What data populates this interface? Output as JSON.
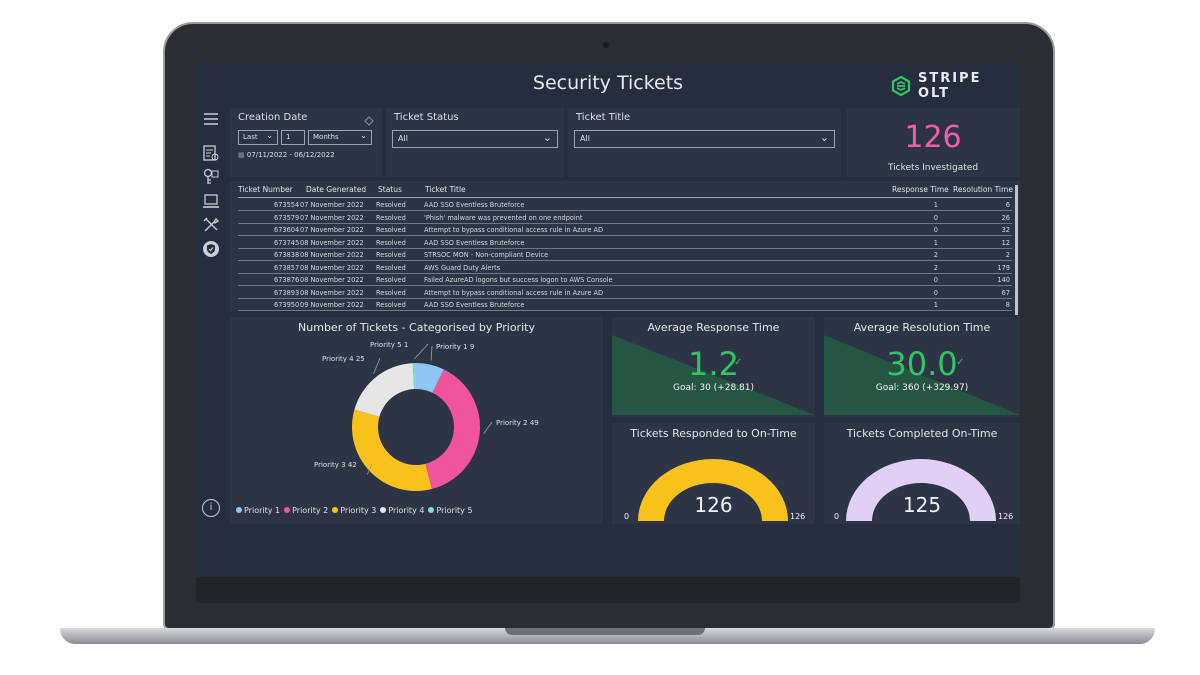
{
  "header": {
    "title": "Security Tickets",
    "brand": "STRIPE OLT"
  },
  "nav": {
    "icons": [
      "menu-icon",
      "report-icon",
      "key-icon",
      "laptop-icon",
      "tools-icon",
      "shield-icon"
    ],
    "info": "i"
  },
  "filters": {
    "creation_date": {
      "label": "Creation Date",
      "period": "Last",
      "count": "1",
      "unit": "Months",
      "range": "07/11/2022 - 06/12/2022"
    },
    "ticket_status": {
      "label": "Ticket Status",
      "value": "All"
    },
    "ticket_title": {
      "label": "Ticket Title",
      "value": "All"
    }
  },
  "kpi": {
    "value": "126",
    "caption": "Tickets Investigated"
  },
  "table": {
    "headers": {
      "number": "Ticket Number",
      "date": "Date Generated",
      "status": "Status",
      "title": "Ticket Title",
      "response": "Response Time",
      "resolution": "Resolution Time"
    },
    "rows": [
      {
        "number": "673554",
        "date": "07 November 2022",
        "status": "Resolved",
        "title": "AAD SSO Eventless Bruteforce",
        "response": "1",
        "resolution": "6"
      },
      {
        "number": "673579",
        "date": "07 November 2022",
        "status": "Resolved",
        "title": "'Phish' malware was prevented on one endpoint",
        "response": "0",
        "resolution": "26"
      },
      {
        "number": "673604",
        "date": "07 November 2022",
        "status": "Resolved",
        "title": "Attempt to bypass conditional access rule in Azure AD",
        "response": "0",
        "resolution": "32"
      },
      {
        "number": "673745",
        "date": "08 November 2022",
        "status": "Resolved",
        "title": "AAD SSO Eventless Bruteforce",
        "response": "1",
        "resolution": "12"
      },
      {
        "number": "673838",
        "date": "08 November 2022",
        "status": "Resolved",
        "title": "STRSOC MON - Non-compliant Device",
        "response": "2",
        "resolution": "2"
      },
      {
        "number": "673857",
        "date": "08 November 2022",
        "status": "Resolved",
        "title": "AWS Guard Duty Alerts",
        "response": "2",
        "resolution": "179"
      },
      {
        "number": "673876",
        "date": "08 November 2022",
        "status": "Resolved",
        "title": "Failed AzureAD logons but success logon to AWS Console",
        "response": "0",
        "resolution": "140"
      },
      {
        "number": "673893",
        "date": "08 November 2022",
        "status": "Resolved",
        "title": "Attempt to bypass conditional access rule in Azure AD",
        "response": "0",
        "resolution": "67"
      },
      {
        "number": "673950",
        "date": "09 November 2022",
        "status": "Resolved",
        "title": "AAD SSO Eventless Bruteforce",
        "response": "1",
        "resolution": "8"
      }
    ]
  },
  "donut": {
    "title": "Number of Tickets - Categorised by Priority",
    "labels": [
      "Priority 1 9",
      "Priority 2 49",
      "Priority 3 42",
      "Priority 4 25",
      "Priority 5 1"
    ],
    "legend": [
      "Priority 1",
      "Priority 2",
      "Priority 3",
      "Priority 4",
      "Priority 5"
    ]
  },
  "response_card": {
    "title": "Average Response Time",
    "value": "1.2",
    "goal": "Goal: 30 (+28.81)"
  },
  "resolution_card": {
    "title": "Average Resolution Time",
    "value": "30.0",
    "goal": "Goal: 360 (+329.97)"
  },
  "responded_gauge": {
    "title": "Tickets Responded to On-Time",
    "value": "126",
    "min": "0",
    "max": "126"
  },
  "completed_gauge": {
    "title": "Tickets Completed On-Time",
    "value": "125",
    "min": "0",
    "max": "126"
  },
  "chart_data": {
    "type": "pie",
    "title": "Number of Tickets - Categorised by Priority",
    "categories": [
      "Priority 1",
      "Priority 2",
      "Priority 3",
      "Priority 4",
      "Priority 5"
    ],
    "values": [
      9,
      49,
      42,
      25,
      1
    ],
    "colors": [
      "#8ec7f5",
      "#f0559c",
      "#f8c21a",
      "#e6e6e6",
      "#7fd9d6"
    ],
    "legend_placement": "bottom-left"
  },
  "colors": {
    "accent_pink": "#f25ea8",
    "accent_green": "#2fc564",
    "gauge_yellow": "#f8c21a",
    "gauge_lavender": "#e2cff5",
    "screen_bg": "#262d3e",
    "panel_bg": "#2c3446"
  }
}
